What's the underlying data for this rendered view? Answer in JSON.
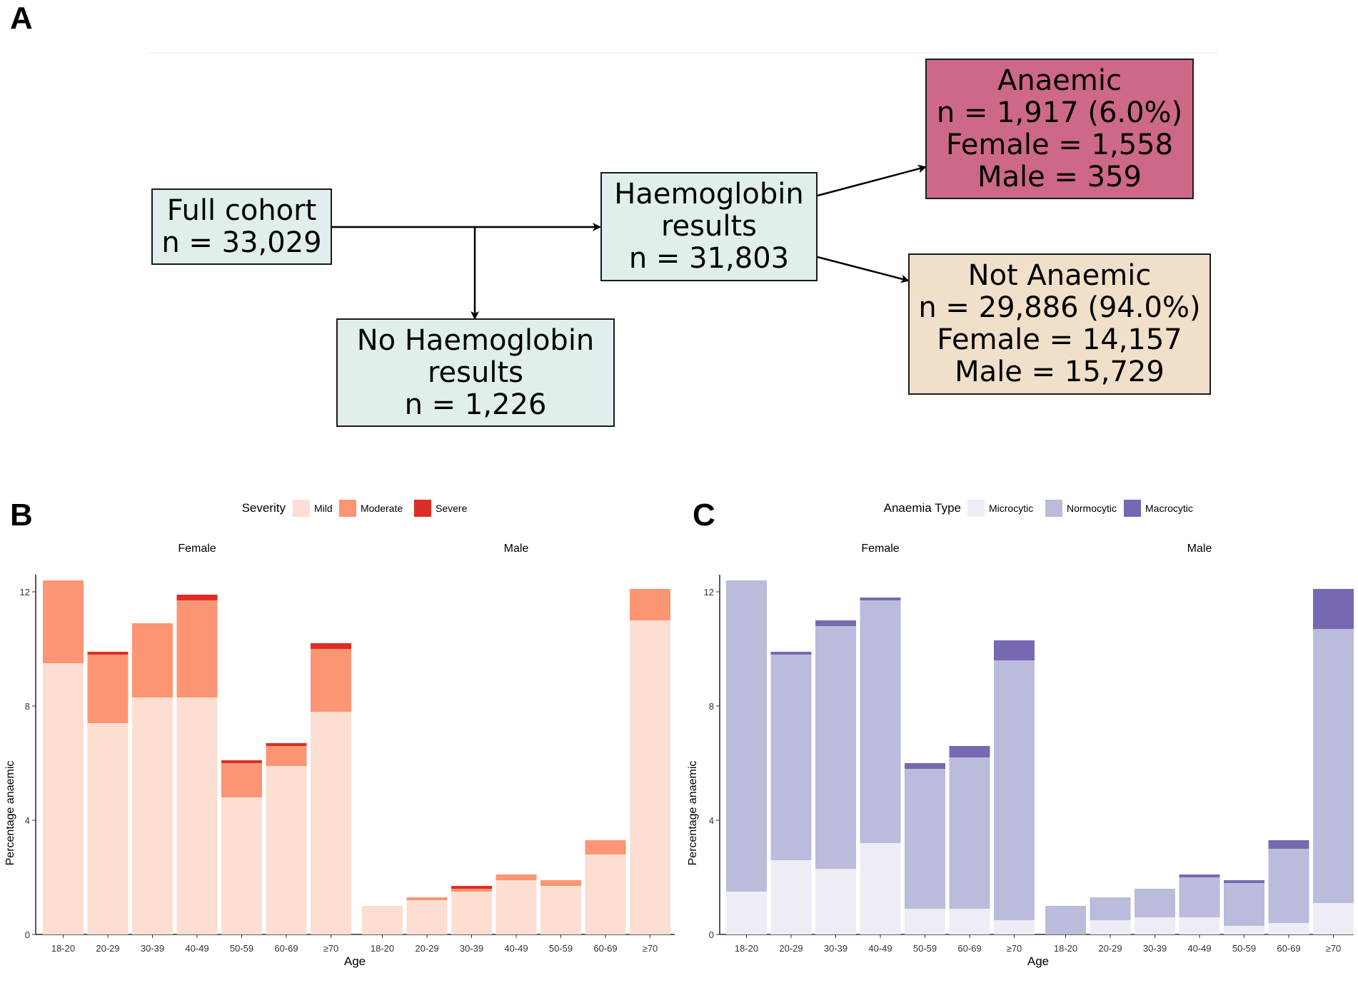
{
  "panels": {
    "a": "A",
    "b": "B",
    "c": "C"
  },
  "flowchart": {
    "full_cohort": {
      "line1": "Full cohort",
      "line2": "n = 33,029"
    },
    "haemoglobin": {
      "line1": "Haemoglobin",
      "line2": "results",
      "line3": "n = 31,803"
    },
    "no_haemoglobin": {
      "line1": "No Haemoglobin",
      "line2": "results",
      "line3": "n = 1,226"
    },
    "anaemic": {
      "line1": "Anaemic",
      "line2": "n = 1,917 (6.0%)",
      "line3": "Female = 1,558",
      "line4": "Male = 359"
    },
    "not_anaemic": {
      "line1": "Not Anaemic",
      "line2": "n = 29,886 (94.0%)",
      "line3": "Female = 14,157",
      "line4": "Male = 15,729"
    },
    "colors": {
      "teal": "#e0eeed",
      "anaemic": "#cd6886",
      "not_anaemic": "#f0dfc9"
    }
  },
  "chart_data": [
    {
      "type": "bar",
      "stacked": true,
      "panel": "B",
      "legend_title": "Severity",
      "legend_position": "top",
      "facets": [
        "Female",
        "Male"
      ],
      "categories": [
        "18-20",
        "20-29",
        "30-39",
        "40-49",
        "50-59",
        "60-69",
        "≥70"
      ],
      "xlabel": "Age",
      "ylabel": "Percentage anaemic",
      "ylim": [
        0,
        12.6
      ],
      "yticks": [
        0,
        4,
        8,
        12
      ],
      "series": [
        {
          "name": "Mild",
          "color": "#fcdfd2",
          "Female": [
            9.5,
            7.4,
            8.3,
            8.3,
            4.8,
            5.9,
            7.8
          ],
          "Male": [
            1.0,
            1.2,
            1.5,
            1.9,
            1.7,
            2.8,
            11.0
          ]
        },
        {
          "name": "Moderate",
          "color": "#fb9573",
          "Female": [
            2.9,
            2.4,
            2.6,
            3.4,
            1.2,
            0.7,
            2.2
          ],
          "Male": [
            0.0,
            0.1,
            0.1,
            0.2,
            0.2,
            0.5,
            1.1
          ]
        },
        {
          "name": "Severe",
          "color": "#de2d26",
          "Female": [
            0.0,
            0.1,
            0.0,
            0.2,
            0.1,
            0.1,
            0.2
          ],
          "Male": [
            0.0,
            0.0,
            0.1,
            0.0,
            0.0,
            0.0,
            0.0
          ]
        }
      ]
    },
    {
      "type": "bar",
      "stacked": true,
      "panel": "C",
      "legend_title": "Anaemia Type",
      "legend_position": "top",
      "facets": [
        "Female",
        "Male"
      ],
      "categories": [
        "18-20",
        "20-29",
        "30-39",
        "40-49",
        "50-59",
        "60-69",
        "≥70"
      ],
      "xlabel": "Age",
      "ylabel": "Percentage anaemic",
      "ylim": [
        0,
        12.6
      ],
      "yticks": [
        0,
        4,
        8,
        12
      ],
      "series": [
        {
          "name": "Microcytic",
          "color": "#eeedf6",
          "Female": [
            1.5,
            2.6,
            2.3,
            3.2,
            0.9,
            0.9,
            0.5
          ],
          "Male": [
            0.0,
            0.5,
            0.6,
            0.6,
            0.3,
            0.4,
            1.1
          ]
        },
        {
          "name": "Normocytic",
          "color": "#bbbbdc",
          "Female": [
            10.9,
            7.2,
            8.5,
            8.5,
            4.9,
            5.3,
            9.1
          ],
          "Male": [
            1.0,
            0.8,
            1.0,
            1.4,
            1.5,
            2.6,
            9.6
          ]
        },
        {
          "name": "Macrocytic",
          "color": "#7768b1",
          "Female": [
            0.0,
            0.1,
            0.2,
            0.1,
            0.2,
            0.4,
            0.7
          ],
          "Male": [
            0.0,
            0.0,
            0.0,
            0.1,
            0.1,
            0.3,
            1.4
          ]
        }
      ]
    }
  ]
}
